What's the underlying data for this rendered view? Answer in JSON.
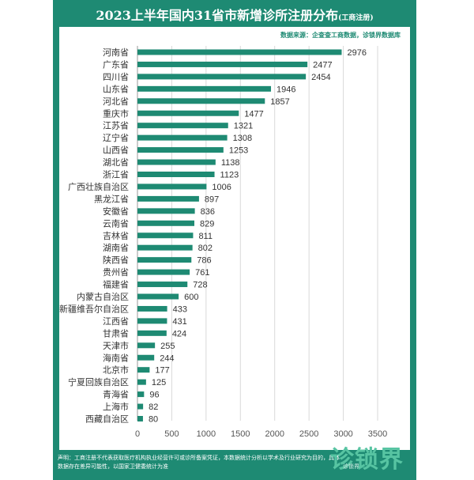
{
  "header": {
    "title": "2023上半年国内31省市新增诊所注册分布",
    "title_note": "(工商注册)",
    "source": "数据来源：企查查工商数据，诊锁界数据库"
  },
  "footer": {
    "note": "声明：工商注册不代表获取医疗机构执业经营许可或诊所备案凭证，本数据统计分析以学术及行业研究为目的，具体数据存在差异可能性，以国家卫健委统计为准",
    "logo_text": "诊锁界",
    "logo_sub": "诊锁界"
  },
  "colors": {
    "frame": "#1e8a73",
    "bar": "#1e8a73",
    "panel": "#ffffff"
  },
  "chart_data": {
    "type": "bar",
    "orientation": "horizontal",
    "categories": [
      "河南省",
      "广东省",
      "四川省",
      "山东省",
      "河北省",
      "重庆市",
      "江苏省",
      "辽宁省",
      "山西省",
      "湖北省",
      "浙江省",
      "广西壮族自治区",
      "黑龙江省",
      "安徽省",
      "云南省",
      "吉林省",
      "湖南省",
      "陕西省",
      "贵州省",
      "福建省",
      "内蒙古自治区",
      "新疆维吾尔自治区",
      "江西省",
      "甘肃省",
      "天津市",
      "海南省",
      "北京市",
      "宁夏回族自治区",
      "青海省",
      "上海市",
      "西藏自治区"
    ],
    "values": [
      2976,
      2477,
      2454,
      1946,
      1857,
      1477,
      1321,
      1308,
      1253,
      1138,
      1123,
      1006,
      897,
      836,
      829,
      811,
      802,
      786,
      761,
      728,
      600,
      433,
      431,
      424,
      255,
      244,
      177,
      125,
      96,
      82,
      80
    ],
    "xlim": [
      0,
      3500
    ],
    "xticks": [
      0,
      500,
      1000,
      1500,
      2000,
      2500,
      3000,
      3500
    ],
    "grid": true,
    "data_labels": true
  }
}
